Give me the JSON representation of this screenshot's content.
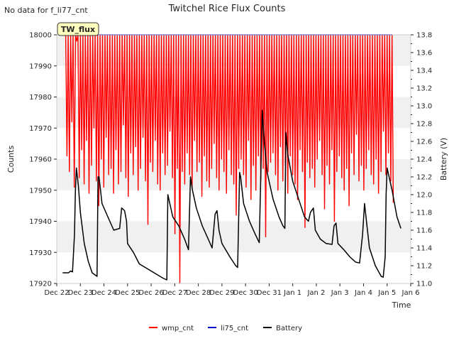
{
  "figure": {
    "no_data_note": "No data for f_li77_cnt",
    "title": "Twitchel Rice Flux Counts",
    "badge": "TW_flux"
  },
  "colors": {
    "wmp_cnt": "#ff0000",
    "li75_cnt": "#0000cc",
    "Battery": "#000000",
    "band": "#f0f0f0",
    "badge_fill": "#ffffc0"
  },
  "chart_data": {
    "type": "line",
    "xlabel": "Time",
    "ylabel": "Counts",
    "y2label": "Battery (V)",
    "xlim": [
      "Dec 22",
      "Jan 6"
    ],
    "xticks": [
      "Dec 22",
      "Dec 23",
      "Dec 24",
      "Dec 25",
      "Dec 26",
      "Dec 27",
      "Dec 28",
      "Dec 29",
      "Dec 30",
      "Dec 31",
      "Jan 1",
      "Jan 2",
      "Jan 3",
      "Jan 4",
      "Jan 5",
      "Jan 6"
    ],
    "ylim": [
      17920,
      18000
    ],
    "yticks": [
      17920,
      17930,
      17940,
      17950,
      17960,
      17970,
      17980,
      17990,
      18000
    ],
    "y2lim": [
      11.0,
      13.8
    ],
    "y2ticks": [
      "11.0",
      "11.2",
      "11.4",
      "11.6",
      "11.8",
      "12.0",
      "12.2",
      "12.4",
      "12.6",
      "12.8",
      "13.0",
      "13.2",
      "13.4",
      "13.6",
      "13.8"
    ],
    "legend": [
      "wmp_cnt",
      "li75_cnt",
      "Battery"
    ],
    "legend_position": "bottom",
    "series": [
      {
        "name": "wmp_cnt",
        "axis": "left",
        "x_start": "Dec 22",
        "x_end": "Jan 5",
        "values": [
          17961,
          17956,
          17972,
          17951,
          17998,
          17954,
          17963,
          17952,
          17966,
          17949,
          17958,
          17970,
          17953,
          17945,
          17960,
          17951,
          17967,
          17955,
          17957,
          17949,
          17963,
          17952,
          17956,
          17971,
          17954,
          17948,
          17962,
          17955,
          17964,
          17950,
          17957,
          17967,
          17953,
          17939,
          17959,
          17956,
          17966,
          17952,
          17950,
          17962,
          17955,
          17958,
          17969,
          17954,
          17936,
          17957,
          17920,
          17956,
          17952,
          17962,
          17955,
          17951,
          17966,
          17956,
          17959,
          17948,
          17961,
          17953,
          17951,
          17957,
          17965,
          17954,
          17950,
          17960,
          17956,
          17949,
          17963,
          17955,
          17952,
          17942,
          17957,
          17960,
          17955,
          17951,
          17966,
          17947,
          17958,
          17950,
          17961,
          17953,
          17957,
          17935,
          17956,
          17959,
          17962,
          17955,
          17950,
          17964,
          17953,
          17958,
          17949,
          17961,
          17955,
          17952,
          17947,
          17963,
          17956,
          17938,
          17959,
          17954,
          17957,
          17951,
          17960,
          17966,
          17955,
          17944,
          17958,
          17952,
          17963,
          17940,
          17956,
          17961,
          17954,
          17950,
          17957,
          17945,
          17962,
          17955,
          17968,
          17953,
          17958,
          17950,
          17957,
          17963,
          17955,
          17952,
          17960,
          17949,
          17956,
          17969,
          17955,
          17962,
          17953,
          17946
        ]
      },
      {
        "name": "li75_cnt",
        "axis": "left",
        "values": [
          18000,
          18000
        ]
      },
      {
        "name": "Battery",
        "axis": "right",
        "points": [
          [
            "Dec 22 06:00",
            11.12
          ],
          [
            "Dec 22 12:00",
            11.12
          ],
          [
            "Dec 22 14:00",
            11.14
          ],
          [
            "Dec 22 16:00",
            11.13
          ],
          [
            "Dec 22 18:00",
            11.55
          ],
          [
            "Dec 22 19:00",
            12.05
          ],
          [
            "Dec 22 20:00",
            12.3
          ],
          [
            "Dec 22 22:00",
            12.1
          ],
          [
            "Dec 23 00:00",
            11.8
          ],
          [
            "Dec 23 04:00",
            11.45
          ],
          [
            "Dec 23 08:00",
            11.25
          ],
          [
            "Dec 23 12:00",
            11.12
          ],
          [
            "Dec 23 17:00",
            11.08
          ],
          [
            "Dec 23 18:00",
            12.2
          ],
          [
            "Dec 23 19:00",
            12.2
          ],
          [
            "Dec 23 22:00",
            11.9
          ],
          [
            "Dec 24 02:00",
            11.8
          ],
          [
            "Dec 24 06:00",
            11.7
          ],
          [
            "Dec 24 10:00",
            11.6
          ],
          [
            "Dec 24 16:00",
            11.62
          ],
          [
            "Dec 24 18:00",
            11.85
          ],
          [
            "Dec 24 21:00",
            11.82
          ],
          [
            "Dec 24 23:00",
            11.7
          ],
          [
            "Dec 25 00:00",
            11.45
          ],
          [
            "Dec 25 06:00",
            11.35
          ],
          [
            "Dec 25 12:00",
            11.22
          ],
          [
            "Dec 25 18:00",
            11.18
          ],
          [
            "Dec 26 00:00",
            11.14
          ],
          [
            "Dec 26 06:00",
            11.1
          ],
          [
            "Dec 26 12:00",
            11.06
          ],
          [
            "Dec 26 16:00",
            11.04
          ],
          [
            "Dec 26 17:00",
            12.0
          ],
          [
            "Dec 26 18:00",
            11.95
          ],
          [
            "Dec 26 22:00",
            11.75
          ],
          [
            "Dec 27 04:00",
            11.65
          ],
          [
            "Dec 27 10:00",
            11.5
          ],
          [
            "Dec 27 14:00",
            11.38
          ],
          [
            "Dec 27 16:00",
            12.2
          ],
          [
            "Dec 27 18:00",
            12.05
          ],
          [
            "Dec 27 22:00",
            11.85
          ],
          [
            "Dec 28 04:00",
            11.65
          ],
          [
            "Dec 28 10:00",
            11.5
          ],
          [
            "Dec 28 14:00",
            11.4
          ],
          [
            "Dec 28 17:00",
            11.78
          ],
          [
            "Dec 28 19:00",
            11.82
          ],
          [
            "Dec 28 21:00",
            11.6
          ],
          [
            "Dec 29 00:00",
            11.45
          ],
          [
            "Dec 29 08:00",
            11.3
          ],
          [
            "Dec 29 14:00",
            11.2
          ],
          [
            "Dec 29 16:00",
            11.18
          ],
          [
            "Dec 29 18:00",
            12.25
          ],
          [
            "Dec 29 19:00",
            12.2
          ],
          [
            "Dec 29 22:00",
            11.9
          ],
          [
            "Dec 30 04:00",
            11.7
          ],
          [
            "Dec 30 10:00",
            11.55
          ],
          [
            "Dec 30 14:00",
            11.46
          ],
          [
            "Dec 30 17:00",
            12.95
          ],
          [
            "Dec 30 19:00",
            12.6
          ],
          [
            "Dec 30 22:00",
            12.25
          ],
          [
            "Dec 31 04:00",
            11.95
          ],
          [
            "Dec 31 10:00",
            11.75
          ],
          [
            "Dec 31 14:00",
            11.65
          ],
          [
            "Dec 31 16:00",
            11.62
          ],
          [
            "Dec 31 17:00",
            12.7
          ],
          [
            "Dec 31 19:00",
            12.45
          ],
          [
            "Jan 1 00:00",
            12.15
          ],
          [
            "Jan 1 06:00",
            11.95
          ],
          [
            "Jan 1 12:00",
            11.75
          ],
          [
            "Jan 1 16:00",
            11.7
          ],
          [
            "Jan 1 18:00",
            11.8
          ],
          [
            "Jan 1 21:00",
            11.85
          ],
          [
            "Jan 1 23:00",
            11.6
          ],
          [
            "Jan 2 04:00",
            11.5
          ],
          [
            "Jan 2 10:00",
            11.45
          ],
          [
            "Jan 2 16:00",
            11.44
          ],
          [
            "Jan 2 18:00",
            11.65
          ],
          [
            "Jan 2 20:00",
            11.68
          ],
          [
            "Jan 2 22:00",
            11.45
          ],
          [
            "Jan 3 04:00",
            11.38
          ],
          [
            "Jan 3 10:00",
            11.3
          ],
          [
            "Jan 3 16:00",
            11.24
          ],
          [
            "Jan 3 20:00",
            11.23
          ],
          [
            "Jan 3 23:00",
            11.55
          ],
          [
            "Jan 4 01:00",
            11.9
          ],
          [
            "Jan 4 03:00",
            11.7
          ],
          [
            "Jan 4 06:00",
            11.4
          ],
          [
            "Jan 4 12:00",
            11.2
          ],
          [
            "Jan 4 18:00",
            11.08
          ],
          [
            "Jan 4 20:00",
            11.07
          ],
          [
            "Jan 4 22:00",
            11.3
          ],
          [
            "Jan 4 23:00",
            12.0
          ],
          [
            "Jan 5 00:00",
            12.3
          ],
          [
            "Jan 5 02:00",
            12.2
          ],
          [
            "Jan 5 05:00",
            12.05
          ],
          [
            "Jan 5 10:00",
            11.75
          ],
          [
            "Jan 5 14:00",
            11.62
          ]
        ]
      }
    ]
  }
}
